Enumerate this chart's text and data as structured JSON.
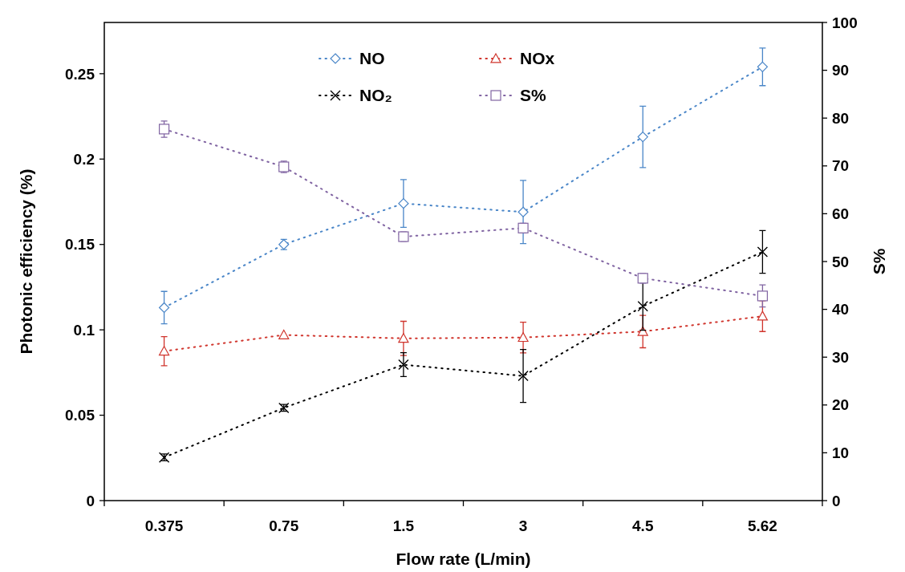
{
  "chart_data": {
    "type": "line",
    "xlabel": "Flow rate (L/min)",
    "ylabel": "Photonic efficiency (%)",
    "y2label": "S%",
    "categories": [
      "0.375",
      "0.75",
      "1.5",
      "3",
      "4.5",
      "5.62"
    ],
    "ylim": [
      0,
      0.28
    ],
    "yticks": [
      {
        "value": 0,
        "label": "0"
      },
      0.05,
      0.1,
      0.15,
      0.2,
      0.25
    ],
    "y2lim": [
      0,
      100
    ],
    "y2ticks": [
      0,
      10,
      20,
      30,
      40,
      50,
      60,
      70,
      80,
      90,
      100
    ],
    "grid": false,
    "legend": "top",
    "line_style": "dotted",
    "series": [
      {
        "name": "NO",
        "color": "#4a86c8",
        "marker": "diamond",
        "values": [
          0.113,
          0.15,
          0.174,
          0.169,
          0.213,
          0.254
        ],
        "errors": [
          0.0095,
          0.003,
          0.014,
          0.0185,
          0.018,
          0.011
        ]
      },
      {
        "name": "NOx",
        "color": "#d0342c",
        "marker": "triangle",
        "values": [
          0.0875,
          0.097,
          0.095,
          0.0955,
          0.099,
          0.108
        ],
        "errors": [
          0.0085,
          null,
          0.01,
          0.009,
          0.0095,
          0.009
        ]
      },
      {
        "name": "NO₂",
        "color": "#000000",
        "marker": "cross",
        "values": [
          0.0253,
          0.0543,
          0.0796,
          0.073,
          0.1138,
          0.1456
        ],
        "errors": [
          0.002,
          0.002,
          0.007,
          0.0155,
          0.014,
          0.0125
        ]
      },
      {
        "name": "S%",
        "color": "#8064a2",
        "marker": "square",
        "axis": "y2",
        "values": [
          77.7,
          69.8,
          55.2,
          57.0,
          46.5,
          42.8
        ],
        "errors": [
          1.7,
          1.2,
          1.0,
          1.0,
          1.0,
          2.3
        ]
      }
    ]
  }
}
